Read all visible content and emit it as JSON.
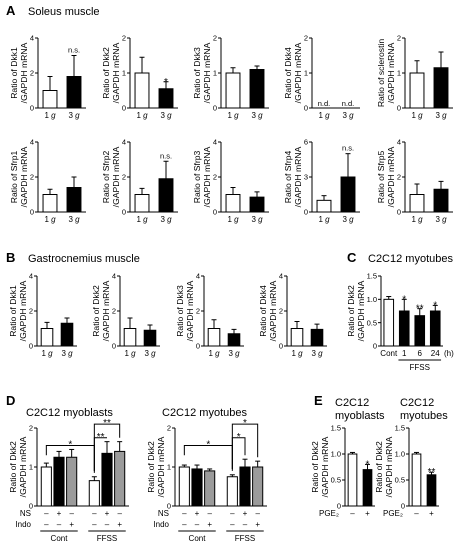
{
  "colors": {
    "white": "#ffffff",
    "black": "#000000",
    "gray": "#9b9b9b",
    "axis": "#000000"
  },
  "panels": [
    {
      "label": "A",
      "title": "Soleus muscle"
    },
    {
      "label": "B",
      "title": "Gastrocnemius muscle"
    },
    {
      "label": "C",
      "title": "C2C12 myotubes"
    },
    {
      "label": "D",
      "titles": [
        "C2C12 myoblasts",
        "C2C12 myotubes"
      ]
    },
    {
      "label": "E",
      "titles": [
        "C2C12\nmyoblasts",
        "C2C12\nmyotubes"
      ]
    }
  ],
  "chart_data": [
    {
      "id": "A1",
      "type": "bar",
      "ylabel": "Ratio of Dkk1\n/GAPDH mRNA",
      "ylim": [
        0,
        4
      ],
      "yticks": [
        "0",
        "2",
        "4"
      ],
      "categories": [
        "1 g",
        "3 g"
      ],
      "values": [
        1.0,
        1.8
      ],
      "errors": [
        0.8,
        1.2
      ],
      "fills": [
        "white",
        "black"
      ],
      "annotations": [
        {
          "bar": 1,
          "text": "n.s."
        }
      ]
    },
    {
      "id": "A2",
      "type": "bar",
      "ylabel": "Ratio of Dkk2\n/GAPDH mRNA",
      "ylim": [
        0,
        2
      ],
      "yticks": [
        "0",
        "1",
        "2"
      ],
      "categories": [
        "1 g",
        "3 g"
      ],
      "values": [
        1.0,
        0.55
      ],
      "errors": [
        0.45,
        0.2
      ],
      "fills": [
        "white",
        "black"
      ],
      "annotations": [
        {
          "bar": 1,
          "text": "*"
        }
      ]
    },
    {
      "id": "A3",
      "type": "bar",
      "ylabel": "Ratio of Dkk3\n/GAPDH mRNA",
      "ylim": [
        0,
        2
      ],
      "yticks": [
        "0",
        "1",
        "2"
      ],
      "categories": [
        "1 g",
        "3 g"
      ],
      "values": [
        1.0,
        1.1
      ],
      "errors": [
        0.15,
        0.1
      ],
      "fills": [
        "white",
        "black"
      ],
      "annotations": []
    },
    {
      "id": "A4",
      "type": "bar",
      "ylabel": "Ratio of Dkk4\n/GAPDH mRNA",
      "ylim": [
        0,
        2
      ],
      "yticks": [
        "0",
        "1",
        "2"
      ],
      "categories": [
        "1 g",
        "3 g"
      ],
      "values": [
        0,
        0
      ],
      "errors": [
        0,
        0
      ],
      "fills": [
        "white",
        "black"
      ],
      "annotations": [],
      "labels": [
        "n.d.",
        "n.d."
      ]
    },
    {
      "id": "A5",
      "type": "bar",
      "ylabel": "Ratio of sclerostin\n/GAPDH mRNA",
      "ylim": [
        0,
        2
      ],
      "yticks": [
        "0",
        "1",
        "2"
      ],
      "categories": [
        "1 g",
        "3 g"
      ],
      "values": [
        1.0,
        1.15
      ],
      "errors": [
        0.35,
        0.45
      ],
      "fills": [
        "white",
        "black"
      ],
      "annotations": []
    },
    {
      "id": "A6",
      "type": "bar",
      "ylabel": "Ratio of Sfrp1\n/GAPDH mRNA",
      "ylim": [
        0,
        4
      ],
      "yticks": [
        "0",
        "2",
        "4"
      ],
      "categories": [
        "1 g",
        "3 g"
      ],
      "values": [
        1.0,
        1.4
      ],
      "errors": [
        0.3,
        0.6
      ],
      "fills": [
        "white",
        "black"
      ],
      "annotations": []
    },
    {
      "id": "A7",
      "type": "bar",
      "ylabel": "Ratio of Sfrp2\n/GAPDH mRNA",
      "ylim": [
        0,
        4
      ],
      "yticks": [
        "0",
        "2",
        "4"
      ],
      "categories": [
        "1 g",
        "3 g"
      ],
      "values": [
        1.0,
        1.9
      ],
      "errors": [
        0.35,
        1.0
      ],
      "fills": [
        "white",
        "black"
      ],
      "annotations": [
        {
          "bar": 1,
          "text": "n.s."
        }
      ]
    },
    {
      "id": "A8",
      "type": "bar",
      "ylabel": "Ratio of Sfrp3\n/GAPDH mRNA",
      "ylim": [
        0,
        4
      ],
      "yticks": [
        "0",
        "2",
        "4"
      ],
      "categories": [
        "1 g",
        "3 g"
      ],
      "values": [
        1.0,
        0.85
      ],
      "errors": [
        0.4,
        0.3
      ],
      "fills": [
        "white",
        "black"
      ],
      "annotations": []
    },
    {
      "id": "A9",
      "type": "bar",
      "ylabel": "Ratio of Sfrp4\n/GAPDH mRNA",
      "ylim": [
        0,
        6
      ],
      "yticks": [
        "0",
        "3",
        "6"
      ],
      "categories": [
        "1 g",
        "3 g"
      ],
      "values": [
        1.0,
        3.0
      ],
      "errors": [
        0.4,
        2.0
      ],
      "fills": [
        "white",
        "black"
      ],
      "annotations": [
        {
          "bar": 1,
          "text": "n.s."
        }
      ]
    },
    {
      "id": "A10",
      "type": "bar",
      "ylabel": "Ratio of Sfrp5\n/GAPDH mRNA",
      "ylim": [
        0,
        4
      ],
      "yticks": [
        "0",
        "2",
        "4"
      ],
      "categories": [
        "1 g",
        "3 g"
      ],
      "values": [
        1.0,
        1.3
      ],
      "errors": [
        0.6,
        0.45
      ],
      "fills": [
        "white",
        "black"
      ],
      "annotations": []
    },
    {
      "id": "B1",
      "type": "bar",
      "ylabel": "Ratio of Dkk1\n/GAPDH mRNA",
      "ylim": [
        0,
        4
      ],
      "yticks": [
        "0",
        "2",
        "4"
      ],
      "categories": [
        "1 g",
        "3 g"
      ],
      "values": [
        1.0,
        1.3
      ],
      "errors": [
        0.35,
        0.3
      ],
      "fills": [
        "white",
        "black"
      ],
      "annotations": []
    },
    {
      "id": "B2",
      "type": "bar",
      "ylabel": "Ratio of Dkk2\n/GAPDH mRNA",
      "ylim": [
        0,
        4
      ],
      "yticks": [
        "0",
        "2",
        "4"
      ],
      "categories": [
        "1 g",
        "3 g"
      ],
      "values": [
        1.0,
        0.9
      ],
      "errors": [
        0.6,
        0.3
      ],
      "fills": [
        "white",
        "black"
      ],
      "annotations": []
    },
    {
      "id": "B3",
      "type": "bar",
      "ylabel": "Ratio of Dkk3\n/GAPDH mRNA",
      "ylim": [
        0,
        4
      ],
      "yticks": [
        "0",
        "2",
        "4"
      ],
      "categories": [
        "1 g",
        "3 g"
      ],
      "values": [
        1.0,
        0.7
      ],
      "errors": [
        0.5,
        0.25
      ],
      "fills": [
        "white",
        "black"
      ],
      "annotations": []
    },
    {
      "id": "B4",
      "type": "bar",
      "ylabel": "Ratio of Dkk4\n/GAPDH mRNA",
      "ylim": [
        0,
        4
      ],
      "yticks": [
        "0",
        "2",
        "4"
      ],
      "categories": [
        "1 g",
        "3 g"
      ],
      "values": [
        1.0,
        0.95
      ],
      "errors": [
        0.4,
        0.3
      ],
      "fills": [
        "white",
        "black"
      ],
      "annotations": []
    },
    {
      "id": "C",
      "type": "bar",
      "ylabel": "Ratio of Dkk2\n/GAPDH mRNA",
      "ylim": [
        0,
        1.5
      ],
      "yticks": [
        "0",
        "0.5",
        "1.0",
        "1.5"
      ],
      "categories": [
        "Cont",
        "1",
        "6",
        "24"
      ],
      "unit": "(h)",
      "group_label": "FFSS",
      "values": [
        1.0,
        0.75,
        0.65,
        0.75
      ],
      "errors": [
        0.06,
        0.25,
        0.15,
        0.12
      ],
      "fills": [
        "white",
        "black",
        "black",
        "black"
      ],
      "annotations": [
        {
          "bar": 1,
          "text": "*"
        },
        {
          "bar": 2,
          "text": "**"
        },
        {
          "bar": 3,
          "text": "*"
        }
      ]
    },
    {
      "id": "D1",
      "type": "bar",
      "ylabel": "Ratio of Dkk2\n/GAPDH mRNA",
      "ylim": [
        0,
        2
      ],
      "yticks": [
        "0",
        "1",
        "2"
      ],
      "groups": [
        "Cont",
        "FFSS"
      ],
      "row_labels": [
        "NS",
        "Indo"
      ],
      "row_values": [
        [
          "–",
          "+",
          "–"
        ],
        [
          "–",
          "–",
          "+"
        ]
      ],
      "values": [
        1.0,
        1.25,
        1.25,
        0.65,
        1.35,
        1.4
      ],
      "errors": [
        0.1,
        0.15,
        0.2,
        0.1,
        0.3,
        0.25
      ],
      "fills": [
        "white",
        "black",
        "gray",
        "white",
        "black",
        "gray"
      ],
      "brackets": [
        {
          "from": 0,
          "to": 3,
          "text": "*"
        },
        {
          "from": 3,
          "to": 4,
          "text": "**"
        },
        {
          "from": 3,
          "to": 5,
          "text": "**"
        }
      ]
    },
    {
      "id": "D2",
      "type": "bar",
      "ylabel": "Ratio of Dkk2\n/GAPDH mRNA",
      "ylim": [
        0,
        2
      ],
      "yticks": [
        "0",
        "1",
        "2"
      ],
      "groups": [
        "Cont",
        "FFSS"
      ],
      "row_labels": [
        "NS",
        "Indo"
      ],
      "row_values": [
        [
          "–",
          "+",
          "–"
        ],
        [
          "–",
          "–",
          "+"
        ]
      ],
      "values": [
        1.0,
        0.95,
        0.9,
        0.75,
        1.0,
        1.0
      ],
      "errors": [
        0.05,
        0.1,
        0.05,
        0.05,
        0.2,
        0.15
      ],
      "fills": [
        "white",
        "black",
        "gray",
        "white",
        "black",
        "gray"
      ],
      "brackets": [
        {
          "from": 0,
          "to": 3,
          "text": "*"
        },
        {
          "from": 3,
          "to": 4,
          "text": "*"
        },
        {
          "from": 3,
          "to": 5,
          "text": "*"
        }
      ]
    },
    {
      "id": "E1",
      "type": "bar",
      "ylabel": "Ratio of Dkk2\n/GAPDH mRNA",
      "ylim": [
        0,
        1.5
      ],
      "yticks": [
        "0",
        "0.5",
        "1.0",
        "1.5"
      ],
      "row_labels": [
        "PGE₂"
      ],
      "row_values": [
        [
          "–",
          "+"
        ]
      ],
      "values": [
        1.0,
        0.7
      ],
      "errors": [
        0.03,
        0.1
      ],
      "fills": [
        "white",
        "black"
      ],
      "annotations": [
        {
          "bar": 1,
          "text": "*"
        }
      ]
    },
    {
      "id": "E2",
      "type": "bar",
      "ylabel": "Ratio of Dkk2\n/GAPDH mRNA",
      "ylim": [
        0,
        1.5
      ],
      "yticks": [
        "0",
        "0.5",
        "1.0",
        "1.5"
      ],
      "row_labels": [
        "PGE₂"
      ],
      "row_values": [
        [
          "–",
          "+"
        ]
      ],
      "values": [
        1.0,
        0.6
      ],
      "errors": [
        0.03,
        0.05
      ],
      "fills": [
        "white",
        "black"
      ],
      "annotations": [
        {
          "bar": 1,
          "text": "**"
        }
      ]
    }
  ]
}
